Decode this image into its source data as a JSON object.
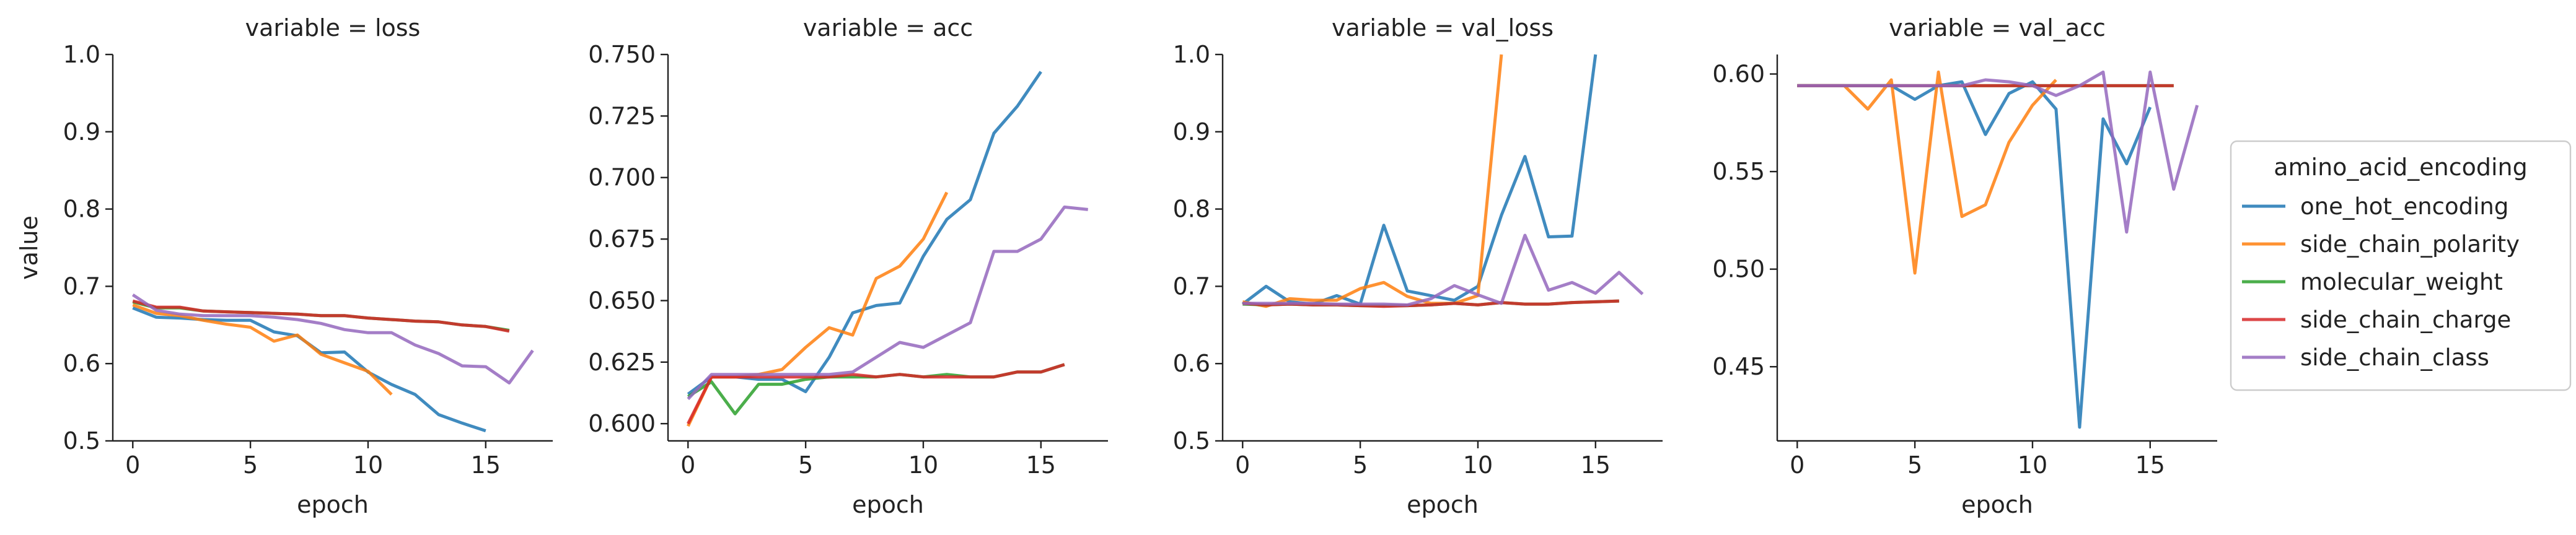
{
  "chart_data": {
    "type": "line",
    "facet_label_prefix": "variable = ",
    "xlabel": "epoch",
    "ylabel": "value",
    "legend_title": "amino_acid_encoding",
    "legend_position": "right",
    "grid": false,
    "series_colors": {
      "one_hot_encoding": "#1f77b4",
      "side_chain_polarity": "#ff7f0e",
      "molecular_weight": "#2ca02c",
      "side_chain_charge": "#d62728",
      "side_chain_class": "#9467bd"
    },
    "series_order": [
      "one_hot_encoding",
      "side_chain_polarity",
      "molecular_weight",
      "side_chain_charge",
      "side_chain_class"
    ],
    "panels": [
      {
        "variable": "loss",
        "title": "variable = loss",
        "xlim": [
          -0.85,
          17.85
        ],
        "ylim": [
          0.5,
          1.0
        ],
        "xticks": [
          0,
          5,
          10,
          15
        ],
        "yticks": [
          0.5,
          0.6,
          0.7,
          0.8,
          0.9,
          1.0
        ],
        "ytick_labels": [
          "0.5",
          "0.6",
          "0.7",
          "0.8",
          "0.9",
          "1.0"
        ],
        "series": [
          {
            "name": "one_hot_encoding",
            "x": [
              0,
              1,
              2,
              3,
              4,
              5,
              6,
              7,
              8,
              9,
              10,
              11,
              12,
              13,
              14,
              15
            ],
            "y": [
              0.672,
              0.66,
              0.659,
              0.657,
              0.656,
              0.656,
              0.641,
              0.636,
              0.614,
              0.615,
              0.589,
              0.573,
              0.56,
              0.534,
              0.523,
              0.513
            ]
          },
          {
            "name": "side_chain_polarity",
            "x": [
              0,
              1,
              2,
              3,
              4,
              5,
              6,
              7,
              8,
              9,
              10,
              11
            ],
            "y": [
              0.676,
              0.665,
              0.662,
              0.656,
              0.651,
              0.647,
              0.629,
              0.637,
              0.612,
              0.601,
              0.59,
              0.56
            ]
          },
          {
            "name": "molecular_weight",
            "x": [
              0,
              1,
              2,
              3,
              4,
              5,
              6,
              7,
              8,
              9,
              10,
              11,
              12,
              13,
              14,
              15,
              16
            ],
            "y": [
              0.68,
              0.672,
              0.672,
              0.668,
              0.667,
              0.666,
              0.665,
              0.664,
              0.662,
              0.662,
              0.659,
              0.657,
              0.655,
              0.654,
              0.65,
              0.648,
              0.643
            ]
          },
          {
            "name": "side_chain_charge",
            "x": [
              0,
              1,
              2,
              3,
              4,
              5,
              6,
              7,
              8,
              9,
              10,
              11,
              12,
              13,
              14,
              15,
              16
            ],
            "y": [
              0.681,
              0.673,
              0.673,
              0.668,
              0.667,
              0.666,
              0.665,
              0.664,
              0.662,
              0.662,
              0.659,
              0.657,
              0.655,
              0.654,
              0.65,
              0.648,
              0.642
            ]
          },
          {
            "name": "side_chain_class",
            "x": [
              0,
              1,
              2,
              3,
              4,
              5,
              6,
              7,
              8,
              9,
              10,
              11,
              12,
              13,
              14,
              15,
              16,
              17
            ],
            "y": [
              0.689,
              0.669,
              0.664,
              0.662,
              0.662,
              0.662,
              0.66,
              0.657,
              0.652,
              0.644,
              0.64,
              0.64,
              0.624,
              0.613,
              0.597,
              0.596,
              0.575,
              0.617
            ]
          }
        ]
      },
      {
        "variable": "acc",
        "title": "variable = acc",
        "xlim": [
          -0.85,
          17.85
        ],
        "ylim": [
          0.593,
          0.75
        ],
        "xticks": [
          0,
          5,
          10,
          15
        ],
        "yticks": [
          0.6,
          0.625,
          0.65,
          0.675,
          0.7,
          0.725,
          0.75
        ],
        "ytick_labels": [
          "0.600",
          "0.625",
          "0.650",
          "0.675",
          "0.700",
          "0.725",
          "0.750"
        ],
        "series": [
          {
            "name": "one_hot_encoding",
            "x": [
              0,
              1,
              2,
              3,
              4,
              5,
              6,
              7,
              8,
              9,
              10,
              11,
              12,
              13,
              14,
              15
            ],
            "y": [
              0.612,
              0.619,
              0.619,
              0.618,
              0.618,
              0.613,
              0.627,
              0.645,
              0.648,
              0.649,
              0.668,
              0.683,
              0.691,
              0.718,
              0.729,
              0.743
            ]
          },
          {
            "name": "side_chain_polarity",
            "x": [
              0,
              1,
              2,
              3,
              4,
              5,
              6,
              7,
              8,
              9,
              10,
              11
            ],
            "y": [
              0.599,
              0.619,
              0.619,
              0.62,
              0.622,
              0.631,
              0.639,
              0.636,
              0.659,
              0.664,
              0.675,
              0.694
            ]
          },
          {
            "name": "molecular_weight",
            "x": [
              0,
              1,
              2,
              3,
              4,
              5,
              6,
              7,
              8,
              9,
              10,
              11,
              12,
              13,
              14,
              15,
              16
            ],
            "y": [
              0.611,
              0.617,
              0.604,
              0.616,
              0.616,
              0.618,
              0.619,
              0.619,
              0.619,
              0.62,
              0.619,
              0.62,
              0.619,
              0.619,
              0.621,
              0.621,
              0.624
            ]
          },
          {
            "name": "side_chain_charge",
            "x": [
              0,
              1,
              2,
              3,
              4,
              5,
              6,
              7,
              8,
              9,
              10,
              11,
              12,
              13,
              14,
              15,
              16
            ],
            "y": [
              0.6,
              0.619,
              0.619,
              0.619,
              0.619,
              0.619,
              0.619,
              0.62,
              0.619,
              0.62,
              0.619,
              0.619,
              0.619,
              0.619,
              0.621,
              0.621,
              0.624
            ]
          },
          {
            "name": "side_chain_class",
            "x": [
              0,
              1,
              2,
              3,
              4,
              5,
              6,
              7,
              8,
              9,
              10,
              11,
              12,
              13,
              14,
              15,
              16,
              17
            ],
            "y": [
              0.61,
              0.62,
              0.62,
              0.62,
              0.62,
              0.62,
              0.62,
              0.621,
              0.627,
              0.633,
              0.631,
              0.636,
              0.641,
              0.67,
              0.67,
              0.675,
              0.688,
              0.687
            ]
          }
        ]
      },
      {
        "variable": "val_loss",
        "title": "variable = val_loss",
        "xlim": [
          -0.85,
          17.85
        ],
        "ylim": [
          0.5,
          1.0
        ],
        "xticks": [
          0,
          5,
          10,
          15
        ],
        "yticks": [
          0.5,
          0.6,
          0.7,
          0.8,
          0.9,
          1.0
        ],
        "ytick_labels": [
          "0.5",
          "0.6",
          "0.7",
          "0.8",
          "0.9",
          "1.0"
        ],
        "series": [
          {
            "name": "one_hot_encoding",
            "x": [
              0,
              1,
              2,
              3,
              4,
              5,
              6,
              7,
              8,
              9,
              10,
              11,
              12,
              13,
              14,
              15
            ],
            "y": [
              0.677,
              0.7,
              0.68,
              0.677,
              0.688,
              0.677,
              0.779,
              0.694,
              0.688,
              0.682,
              0.7,
              0.792,
              0.868,
              0.764,
              0.765,
              1.0
            ]
          },
          {
            "name": "side_chain_polarity",
            "x": [
              0,
              1,
              2,
              3,
              4,
              5,
              6,
              7,
              8,
              9,
              10,
              11
            ],
            "y": [
              0.68,
              0.674,
              0.684,
              0.682,
              0.682,
              0.697,
              0.705,
              0.687,
              0.678,
              0.678,
              0.688,
              1.0
            ]
          },
          {
            "name": "molecular_weight",
            "x": [
              0,
              1,
              2,
              3,
              4,
              5,
              6,
              7,
              8,
              9,
              10,
              11,
              12,
              13,
              14,
              15,
              16
            ],
            "y": [
              0.677,
              0.676,
              0.677,
              0.676,
              0.676,
              0.675,
              0.675,
              0.675,
              0.676,
              0.678,
              0.676,
              0.679,
              0.677,
              0.677,
              0.679,
              0.68,
              0.681
            ]
          },
          {
            "name": "side_chain_charge",
            "x": [
              0,
              1,
              2,
              3,
              4,
              5,
              6,
              7,
              8,
              9,
              10,
              11,
              12,
              13,
              14,
              15,
              16
            ],
            "y": [
              0.678,
              0.676,
              0.677,
              0.676,
              0.676,
              0.675,
              0.674,
              0.675,
              0.676,
              0.678,
              0.676,
              0.679,
              0.677,
              0.677,
              0.679,
              0.68,
              0.681
            ]
          },
          {
            "name": "side_chain_class",
            "x": [
              0,
              1,
              2,
              3,
              4,
              5,
              6,
              7,
              8,
              9,
              10,
              11,
              12,
              13,
              14,
              15,
              16,
              17
            ],
            "y": [
              0.678,
              0.678,
              0.678,
              0.678,
              0.677,
              0.677,
              0.677,
              0.676,
              0.684,
              0.701,
              0.689,
              0.678,
              0.766,
              0.695,
              0.705,
              0.691,
              0.718,
              0.69
            ]
          }
        ]
      },
      {
        "variable": "val_acc",
        "title": "variable = val_acc",
        "xlim": [
          -0.85,
          17.85
        ],
        "ylim": [
          0.412,
          0.61
        ],
        "xticks": [
          0,
          5,
          10,
          15
        ],
        "yticks": [
          0.45,
          0.5,
          0.55,
          0.6
        ],
        "ytick_labels": [
          "0.45",
          "0.50",
          "0.55",
          "0.60"
        ],
        "series": [
          {
            "name": "one_hot_encoding",
            "x": [
              0,
              1,
              2,
              3,
              4,
              5,
              6,
              7,
              8,
              9,
              10,
              11,
              12,
              13,
              14,
              15
            ],
            "y": [
              0.594,
              0.594,
              0.594,
              0.594,
              0.594,
              0.587,
              0.594,
              0.596,
              0.569,
              0.59,
              0.596,
              0.582,
              0.419,
              0.577,
              0.554,
              0.583
            ]
          },
          {
            "name": "side_chain_polarity",
            "x": [
              0,
              1,
              2,
              3,
              4,
              5,
              6,
              7,
              8,
              9,
              10,
              11
            ],
            "y": [
              0.594,
              0.594,
              0.594,
              0.582,
              0.597,
              0.498,
              0.601,
              0.527,
              0.533,
              0.565,
              0.584,
              0.597
            ]
          },
          {
            "name": "molecular_weight",
            "x": [
              0,
              1,
              2,
              3,
              4,
              5,
              6,
              7,
              8,
              9,
              10,
              11,
              12,
              13,
              14,
              15,
              16
            ],
            "y": [
              0.594,
              0.594,
              0.594,
              0.594,
              0.594,
              0.594,
              0.594,
              0.594,
              0.594,
              0.594,
              0.594,
              0.594,
              0.594,
              0.594,
              0.594,
              0.594,
              0.594
            ]
          },
          {
            "name": "side_chain_charge",
            "x": [
              0,
              1,
              2,
              3,
              4,
              5,
              6,
              7,
              8,
              9,
              10,
              11,
              12,
              13,
              14,
              15,
              16
            ],
            "y": [
              0.594,
              0.594,
              0.594,
              0.594,
              0.594,
              0.594,
              0.594,
              0.594,
              0.594,
              0.594,
              0.594,
              0.594,
              0.594,
              0.594,
              0.594,
              0.594,
              0.594
            ]
          },
          {
            "name": "side_chain_class",
            "x": [
              0,
              1,
              2,
              3,
              4,
              5,
              6,
              7,
              8,
              9,
              10,
              11,
              12,
              13,
              14,
              15,
              16,
              17
            ],
            "y": [
              0.594,
              0.594,
              0.594,
              0.594,
              0.594,
              0.594,
              0.594,
              0.594,
              0.597,
              0.596,
              0.594,
              0.589,
              0.594,
              0.601,
              0.519,
              0.601,
              0.541,
              0.584
            ]
          }
        ]
      }
    ]
  }
}
